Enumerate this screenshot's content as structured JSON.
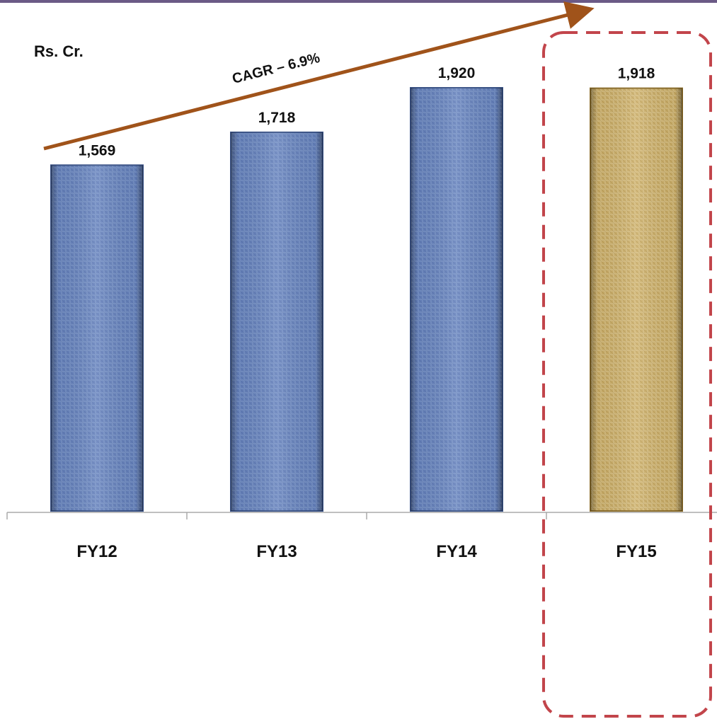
{
  "chart_data": {
    "type": "bar",
    "unit_label": "Rs. Cr.",
    "categories": [
      "FY12",
      "FY13",
      "FY14",
      "FY15"
    ],
    "values": [
      1569,
      1718,
      1920,
      1918
    ],
    "value_labels": [
      "1,569",
      "1,718",
      "1,920",
      "1,918"
    ],
    "bar_colors": [
      "#5a78b4",
      "#5a78b4",
      "#5a78b4",
      "#c9a85a"
    ],
    "highlighted_category": "FY15",
    "annotation": "CAGR – 6.9%",
    "ylim": [
      0,
      1920
    ],
    "grid": false,
    "legend": "none",
    "colors": {
      "bar_blue": "#5a78b4",
      "bar_blue_dark": "#3b5488",
      "bar_gold": "#c9a85a",
      "bar_gold_dark": "#8c6e2c",
      "arrow": "#a0531a",
      "highlight_box": "#c2454b",
      "top_rule": "#6b5a86",
      "axis": "#aaaaaa"
    }
  }
}
